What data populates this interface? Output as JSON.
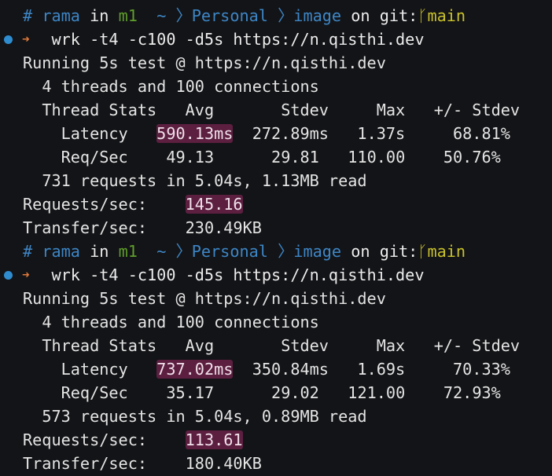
{
  "colors": {
    "background": "#131417",
    "blue": "#3d86c6",
    "green": "#5f9e2c",
    "yellow": "#c9c22b",
    "arrow": "#e07a3a",
    "highlight": "#5c1f40"
  },
  "runs": [
    {
      "prompt": {
        "hash": "#",
        "user": "rama",
        "in": "in",
        "host": "m1",
        "home": "~",
        "sep1": "〉",
        "dir1": "Personal",
        "sep2": "〉",
        "dir2": "image",
        "on": "on",
        "git": "git:",
        "branch_icon": "git-branch-icon",
        "branch_glyph": "ᚴ",
        "branch": "main"
      },
      "command": "wrk -t4 -c100 -d5s https://n.qisthi.dev",
      "running": "Running 5s test @ https://n.qisthi.dev",
      "threads": "4 threads and 100 connections",
      "stats_header": [
        "Thread Stats",
        "Avg",
        "Stdev",
        "Max",
        "+/- Stdev"
      ],
      "latency": [
        "Latency",
        "590.13ms",
        "272.89ms",
        "1.37s",
        "68.81%"
      ],
      "reqsec": [
        "Req/Sec",
        "49.13",
        "29.81",
        "110.00",
        "50.76%"
      ],
      "summary": "731 requests in 5.04s, 1.13MB read",
      "requests_label": "Requests/sec:",
      "requests_value": "145.16",
      "transfer_label": "Transfer/sec:",
      "transfer_value": "230.49KB"
    },
    {
      "prompt": {
        "hash": "#",
        "user": "rama",
        "in": "in",
        "host": "m1",
        "home": "~",
        "sep1": "〉",
        "dir1": "Personal",
        "sep2": "〉",
        "dir2": "image",
        "on": "on",
        "git": "git:",
        "branch_icon": "git-branch-icon",
        "branch_glyph": "ᚴ",
        "branch": "main"
      },
      "command": "wrk -t4 -c100 -d5s https://n.qisthi.dev",
      "running": "Running 5s test @ https://n.qisthi.dev",
      "threads": "4 threads and 100 connections",
      "stats_header": [
        "Thread Stats",
        "Avg",
        "Stdev",
        "Max",
        "+/- Stdev"
      ],
      "latency": [
        "Latency",
        "737.02ms",
        "350.84ms",
        "1.69s",
        "70.33%"
      ],
      "reqsec": [
        "Req/Sec",
        "35.17",
        "29.02",
        "121.00",
        "72.93%"
      ],
      "summary": "573 requests in 5.04s, 0.89MB read",
      "requests_label": "Requests/sec:",
      "requests_value": "113.61",
      "transfer_label": "Transfer/sec:",
      "transfer_value": "180.40KB"
    }
  ]
}
